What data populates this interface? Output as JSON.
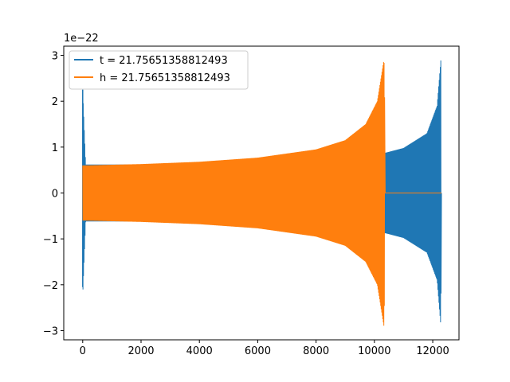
{
  "chart_data": {
    "type": "line",
    "title": "",
    "xlabel": "",
    "ylabel": "",
    "y_offset_label": "1e−22",
    "xlim": [
      -650,
      12900
    ],
    "ylim": [
      -3.2,
      3.2
    ],
    "x_ticks": [
      0,
      2000,
      4000,
      6000,
      8000,
      10000,
      12000
    ],
    "x_tick_labels": [
      "0",
      "2000",
      "4000",
      "6000",
      "8000",
      "10000",
      "12000"
    ],
    "y_ticks": [
      -3,
      -2,
      -1,
      0,
      1,
      2,
      3
    ],
    "y_tick_labels": [
      "−3",
      "−2",
      "−1",
      "0",
      "1",
      "2",
      "3"
    ],
    "grid": false,
    "legend_position": "top-left",
    "series": [
      {
        "name": "t = 21.75651358812493",
        "color": "#1f77b4",
        "description_points": {
          "x": [
            0,
            100,
            2000,
            4000,
            6000,
            8000,
            9500,
            10400,
            11000,
            11800,
            12150,
            12280,
            12300
          ],
          "envelope": [
            2.25,
            0.62,
            0.62,
            0.64,
            0.66,
            0.72,
            0.8,
            0.88,
            0.98,
            1.3,
            1.9,
            2.92,
            0
          ],
          "x_end": 12300,
          "initial_spike": {
            "x": 0,
            "max": 2.25,
            "min": -2.05
          }
        }
      },
      {
        "name": "h = 21.75651358812493",
        "color": "#ff7f0e",
        "description_points": {
          "x": [
            0,
            2000,
            4000,
            6000,
            8000,
            9000,
            9700,
            10100,
            10330,
            10400,
            12300
          ],
          "envelope": [
            0.6,
            0.63,
            0.68,
            0.77,
            0.95,
            1.15,
            1.5,
            2.0,
            2.92,
            0,
            0
          ],
          "x_end": 12300,
          "merger_x": 10350
        }
      }
    ]
  }
}
